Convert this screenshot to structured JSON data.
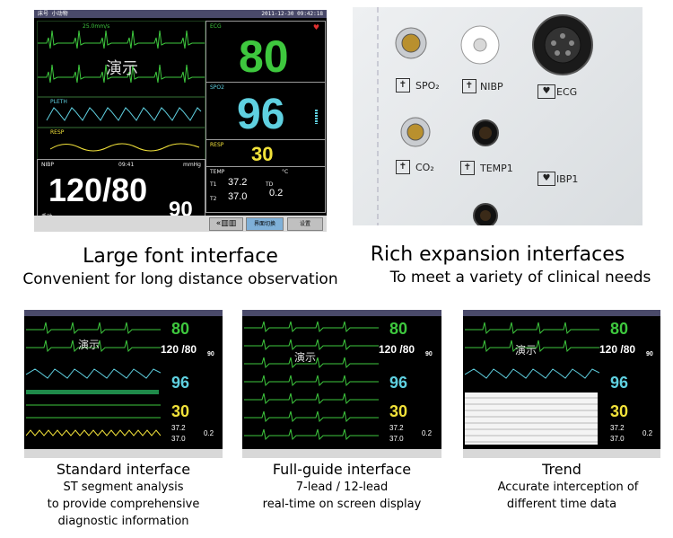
{
  "large": {
    "title": "Large font interface",
    "subtitle": "Convenient for long distance observation",
    "topbar_left": "床号  小动物",
    "topbar_right": "2011-12-30  09:42:18",
    "speed": "25.0mm/s",
    "demo": "演示",
    "ecg_label": "ECG",
    "hr": "80",
    "spo2_label": "SPO2",
    "spo2": "96",
    "resp_label": "RESP",
    "resp": "30",
    "pleth_label": "PLETH",
    "resp_wave_label": "RESP",
    "nibp_label": "NIBP",
    "nibp_time": "09:41",
    "nibp_unit": "mmHg",
    "nibp": "120/80",
    "map": "90",
    "nibp_mode": "手动",
    "temp_label": "TEMP",
    "temp_unit": "°C",
    "t1_label": "T1",
    "t1": "37.2",
    "t2_label": "T2",
    "t2": "37.0",
    "td_label": "TD",
    "td": "0.2",
    "btn_layout": "界面切换",
    "btn_menu": "设置"
  },
  "rich": {
    "title": "Rich expansion interfaces",
    "subtitle": "To meet a variety of clinical needs",
    "spo2": "SPO₂",
    "nibp": "NIBP",
    "ecg": "ECG",
    "co2": "CO₂",
    "temp1": "TEMP1",
    "ibp1": "IBP1"
  },
  "standard": {
    "title": "Standard interface",
    "sub1": "ST segment analysis",
    "sub2": "to provide  comprehensive",
    "sub3": "diagnostic information"
  },
  "fullguide": {
    "title": "Full-guide interface",
    "sub1": "7-lead / 12-lead",
    "sub2": "real-time on screen display"
  },
  "trend": {
    "title": "Trend",
    "sub1": "Accurate interception of",
    "sub2": "different time data"
  },
  "small": {
    "hr": "80",
    "nibp": "120 /80",
    "map": "90",
    "spo2": "96",
    "resp": "30",
    "t1": "37.2",
    "t2": "37.0",
    "td": "0.2",
    "demo": "演示"
  },
  "colors": {
    "hr": "#3ec83e",
    "spo2": "#5fd0e0",
    "resp": "#f2e23a",
    "white": "#ffffff"
  }
}
